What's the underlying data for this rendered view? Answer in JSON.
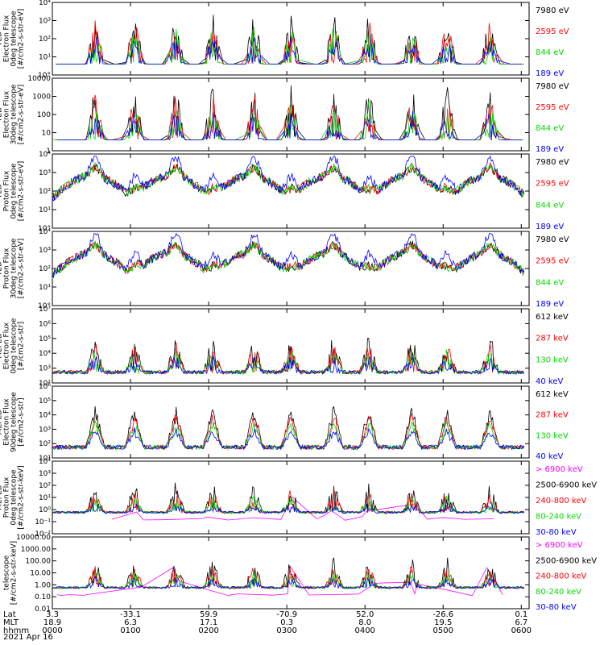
{
  "chart_data": [
    {
      "type": "line",
      "ylabel": [
        "TED",
        "Electron Flux",
        "0deg telescope",
        "[#/cm2-s-str-eV]"
      ],
      "y_ticks": [
        "10°",
        "10¹",
        "10²",
        "10³",
        "10⁴"
      ],
      "ylim": [
        1,
        10000
      ],
      "yscale": "log",
      "legend": [
        {
          "name": "7980 eV",
          "color": "#000000"
        },
        {
          "name": "2595 eV",
          "color": "#ff0000"
        },
        {
          "name": "844 eV",
          "color": "#00dd00"
        },
        {
          "name": "189 eV",
          "color": "#0000ff"
        }
      ]
    },
    {
      "type": "line",
      "ylabel": [
        "TED",
        "Electron Flux",
        "30deg telescope",
        "[#/cm2-s-str-eV]"
      ],
      "y_ticks": [
        "1",
        "10",
        "100",
        "1000",
        "10000"
      ],
      "ylim": [
        1,
        10000
      ],
      "yscale": "log",
      "legend": [
        {
          "name": "7980 eV",
          "color": "#000000"
        },
        {
          "name": "2595 eV",
          "color": "#ff0000"
        },
        {
          "name": "844 eV",
          "color": "#00dd00"
        },
        {
          "name": "189 eV",
          "color": "#0000ff"
        }
      ]
    },
    {
      "type": "line",
      "ylabel": [
        "TED",
        "Proton Flux",
        "0deg telescope",
        "[#/cm2-s-str-eV]"
      ],
      "y_ticks": [
        "10°",
        "10¹",
        "10²",
        "10³",
        "10⁴"
      ],
      "ylim": [
        1,
        10000
      ],
      "yscale": "log",
      "legend": [
        {
          "name": "7980 eV",
          "color": "#000000"
        },
        {
          "name": "2595 eV",
          "color": "#ff0000"
        },
        {
          "name": "844 eV",
          "color": "#00dd00"
        },
        {
          "name": "189 eV",
          "color": "#0000ff"
        }
      ]
    },
    {
      "type": "line",
      "ylabel": [
        "TED",
        "Proton Flux",
        "30deg telescope",
        "[#/cm2-s-str-eV]"
      ],
      "y_ticks": [
        "10°",
        "10¹",
        "10²",
        "10³",
        "10⁴"
      ],
      "ylim": [
        1,
        10000
      ],
      "yscale": "log",
      "legend": [
        {
          "name": "7980 eV",
          "color": "#000000"
        },
        {
          "name": "2595 eV",
          "color": "#ff0000"
        },
        {
          "name": "844 eV",
          "color": "#00dd00"
        },
        {
          "name": "189 eV",
          "color": "#0000ff"
        }
      ]
    },
    {
      "type": "line",
      "ylabel": [
        "MEPED",
        "Electron Flux",
        "0deg telescope",
        "[#/cm2-s-str]"
      ],
      "y_ticks": [
        "10²",
        "10³",
        "10⁴",
        "10⁵",
        "10⁶",
        "10⁷"
      ],
      "ylim": [
        10,
        10000000
      ],
      "yscale": "log",
      "legend": [
        {
          "name": "612 keV",
          "color": "#000000"
        },
        {
          "name": "287 keV",
          "color": "#ff0000"
        },
        {
          "name": "130 keV",
          "color": "#00dd00"
        },
        {
          "name": "40 keV",
          "color": "#0000ff"
        }
      ]
    },
    {
      "type": "line",
      "ylabel": [
        "MEPED",
        "Electron Flux",
        "90deg telescope",
        "[#/cm2-s-str]"
      ],
      "y_ticks": [
        "10¹",
        "10²",
        "10³",
        "10⁴",
        "10⁵",
        "10⁶"
      ],
      "ylim": [
        10,
        1000000
      ],
      "yscale": "log",
      "legend": [
        {
          "name": "612 keV",
          "color": "#000000"
        },
        {
          "name": "287 keV",
          "color": "#ff0000"
        },
        {
          "name": "130 keV",
          "color": "#00dd00"
        },
        {
          "name": "40 keV",
          "color": "#0000ff"
        }
      ]
    },
    {
      "type": "line",
      "ylabel": [
        "MEPED",
        "Proton Flux",
        "0deg telescope",
        "[#/cm2-s-str-keV]"
      ],
      "y_ticks": [
        "10⁻²",
        "10⁻¹",
        "10⁰",
        "10¹",
        "10²",
        "10³",
        "10⁴"
      ],
      "ylim": [
        0.01,
        10000
      ],
      "yscale": "log",
      "legend": [
        {
          "name": "> 6900 keV",
          "color": "#ff00ff"
        },
        {
          "name": "2500-6900 keV",
          "color": "#000000"
        },
        {
          "name": "240-800 keV",
          "color": "#ff0000"
        },
        {
          "name": "80-240 keV",
          "color": "#00dd00"
        },
        {
          "name": "30-80 keV",
          "color": "#0000ff"
        }
      ]
    },
    {
      "type": "line",
      "ylabel": [
        "telescope",
        "[#/cm2-s-str-keV]"
      ],
      "y_ticks": [
        "0.01",
        "0.10",
        "1.00",
        "10.00",
        "100.00",
        "1000.00",
        "10000.00"
      ],
      "ylim": [
        0.01,
        10000
      ],
      "yscale": "log",
      "legend": [
        {
          "name": "> 6900 keV",
          "color": "#ff00ff"
        },
        {
          "name": "2500-6900 keV",
          "color": "#000000"
        },
        {
          "name": "240-800 keV",
          "color": "#ff0000"
        },
        {
          "name": "80-240 keV",
          "color": "#00dd00"
        },
        {
          "name": "30-80 keV",
          "color": "#0000ff"
        }
      ]
    }
  ],
  "x_axis": {
    "row_labels": [
      "Lat",
      "MLT",
      "hhmm"
    ],
    "lat": [
      "3.3",
      "-33.1",
      "59.9",
      "-70.9",
      "52.0",
      "-26.6",
      "0.1"
    ],
    "mlt": [
      "18.9",
      "6.3",
      "17.1",
      "0.3",
      "8.0",
      "19.5",
      "6.7"
    ],
    "hhmm": [
      "0000",
      "0100",
      "0200",
      "0300",
      "0400",
      "0500",
      "0600"
    ],
    "date": "2021 Apr 16"
  }
}
